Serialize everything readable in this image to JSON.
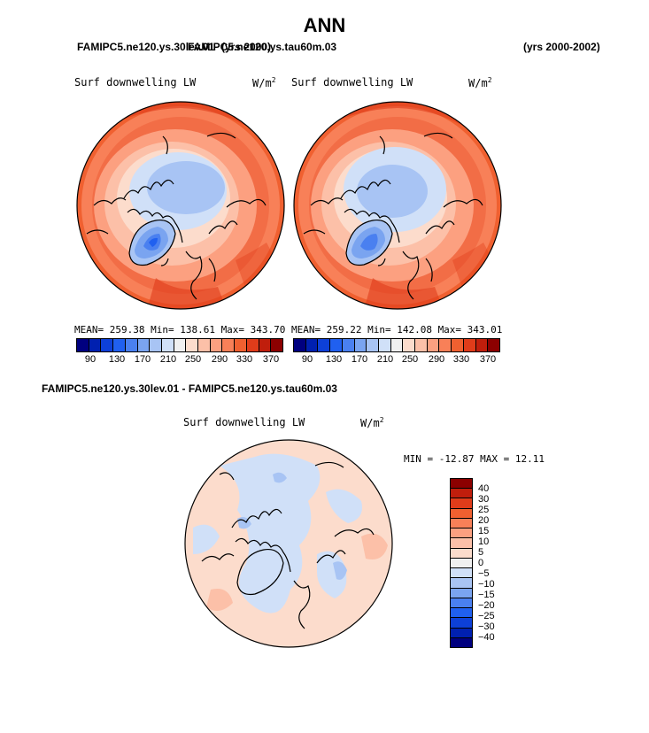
{
  "figure": {
    "title": "ANN",
    "run_left": "FAMIPC5.ne120.ys.30lev.01",
    "run_right_overlap": "FAMIPC5.ne120.ys.tau60m.03",
    "years_overlap": "(yrs 2000)",
    "years": "(yrs 2000-2002)"
  },
  "panel_left": {
    "label": "Surf downwelling LW",
    "units": "W/m",
    "units_sup": "2",
    "stats": "MEAN= 259.38   Min= 138.61   Max= 343.70"
  },
  "panel_right": {
    "label": "Surf downwelling LW",
    "units": "W/m",
    "units_sup": "2",
    "stats": "MEAN= 259.22   Min= 142.08   Max= 343.01"
  },
  "shared_colorbar": {
    "colors": [
      "#00007f",
      "#0020b0",
      "#0d40d8",
      "#2060f0",
      "#4a80f0",
      "#7aa4f0",
      "#a8c4f4",
      "#d0e0f8",
      "#f0f0f0",
      "#fcdccc",
      "#fcc0a8",
      "#fca080",
      "#f88058",
      "#f06030",
      "#e03c1a",
      "#c01e0c",
      "#8c0000"
    ],
    "ticks": [
      "90",
      "130",
      "170",
      "210",
      "250",
      "290",
      "330",
      "370"
    ]
  },
  "diff_panel": {
    "header": "FAMIPC5.ne120.ys.30lev.01 - FAMIPC5.ne120.ys.tau60m.03",
    "label": "Surf downwelling LW",
    "units": "W/m",
    "units_sup": "2",
    "minmax": "MIN = -12.87  MAX =  12.11"
  },
  "diff_colorbar": {
    "colors": [
      "#8c0000",
      "#c01e0c",
      "#e03c1a",
      "#f06030",
      "#f88058",
      "#fca080",
      "#fcc0a8",
      "#fcdccc",
      "#f0f0f0",
      "#d0e0f8",
      "#a8c4f4",
      "#7aa4f0",
      "#4a80f0",
      "#2060f0",
      "#0d40d8",
      "#0020b0",
      "#00007f"
    ],
    "ticks": [
      "40",
      "30",
      "25",
      "20",
      "15",
      "10",
      "5",
      "0",
      "−5",
      "−10",
      "−15",
      "−20",
      "−25",
      "−30",
      "−40"
    ]
  }
}
